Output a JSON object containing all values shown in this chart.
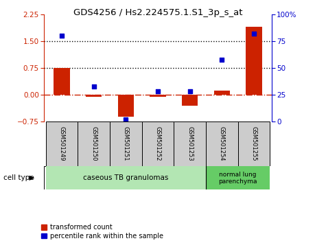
{
  "title": "GDS4256 / Hs2.224575.1.S1_3p_s_at",
  "samples": [
    "GSM501249",
    "GSM501250",
    "GSM501251",
    "GSM501252",
    "GSM501253",
    "GSM501254",
    "GSM501255"
  ],
  "transformed_count": [
    0.75,
    -0.05,
    -0.62,
    -0.05,
    -0.3,
    0.12,
    1.9
  ],
  "percentile_rank": [
    80,
    33,
    2,
    28,
    28,
    58,
    82
  ],
  "bar_color": "#cc2200",
  "dot_color": "#0000cc",
  "ylim_left": [
    -0.75,
    2.25
  ],
  "ylim_right": [
    0,
    100
  ],
  "yticks_left": [
    -0.75,
    0,
    0.75,
    1.5,
    2.25
  ],
  "yticks_right": [
    0,
    25,
    50,
    75,
    100
  ],
  "hline_y": [
    0.75,
    1.5
  ],
  "dashed_hline_y": 0.0,
  "groups": [
    {
      "label": "caseous TB granulomas",
      "samples": [
        0,
        1,
        2,
        3,
        4
      ],
      "color": "#b3e6b3"
    },
    {
      "label": "normal lung\nparenchyma",
      "samples": [
        5,
        6
      ],
      "color": "#66cc66"
    }
  ],
  "legend_labels": [
    "transformed count",
    "percentile rank within the sample"
  ],
  "cell_type_label": "cell type",
  "background_plot": "#ffffff",
  "background_tick_area": "#cccccc",
  "bar_width": 0.5,
  "dot_size": 25
}
